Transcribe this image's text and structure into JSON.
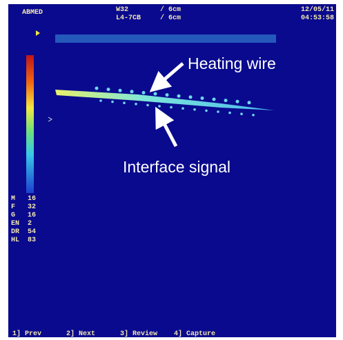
{
  "header": {
    "left": "ABMED",
    "probe": "W32",
    "transducer": "L4-7CB",
    "depth1": "/ 6cm",
    "depth2": "/ 6cm",
    "date": "12/05/11",
    "time": "04:53:58"
  },
  "annotations": {
    "top": "Heating wire",
    "bottom": "Interface signal"
  },
  "parameters": [
    {
      "label": "M",
      "value": "16"
    },
    {
      "label": "F",
      "value": "32"
    },
    {
      "label": "G",
      "value": "16"
    },
    {
      "label": "EN",
      "value": "2"
    },
    {
      "label": "DR",
      "value": "54"
    },
    {
      "label": "HL",
      "value": "83"
    }
  ],
  "menu": [
    "1] Prev",
    "2] Next",
    "3] Review",
    "4] Capture"
  ]
}
